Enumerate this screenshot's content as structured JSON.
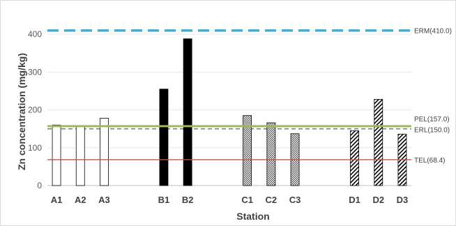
{
  "chart_data": {
    "type": "bar",
    "title": "",
    "xlabel": "Station",
    "ylabel": "Zn concentration (mg/kg)",
    "ylim": [
      0,
      450
    ],
    "yticks": [
      0,
      100,
      200,
      300,
      400
    ],
    "grid": "horizontal",
    "categories": [
      "A1",
      "A2",
      "A3",
      "B1",
      "B2",
      "C1",
      "C2",
      "C3",
      "D1",
      "D2",
      "D3"
    ],
    "groups": [
      "A",
      "A",
      "A",
      "B",
      "B",
      "C",
      "C",
      "C",
      "D",
      "D",
      "D"
    ],
    "values": [
      160,
      157,
      178,
      255,
      388,
      185,
      166,
      137,
      145,
      228,
      136
    ],
    "group_styles": {
      "A": {
        "fill": "#ffffff",
        "stroke": "#000000",
        "pattern": "none"
      },
      "B": {
        "fill": "#000000",
        "stroke": "#000000",
        "pattern": "solid"
      },
      "C": {
        "fill": "#d9d9d9",
        "stroke": "#000000",
        "pattern": "dots"
      },
      "D": {
        "fill": "#ffffff",
        "stroke": "#000000",
        "pattern": "diagonal"
      }
    },
    "reference_lines": [
      {
        "label": "ERM(410.0)",
        "value": 410.0,
        "color": "#4bacc6",
        "style": "dashed-thick"
      },
      {
        "label": "PEL(157.0)",
        "value": 157.0,
        "color": "#9bbb59",
        "style": "solid-thick"
      },
      {
        "label": "ERL(150.0)",
        "value": 150.0,
        "color": "#7f7f7f",
        "style": "dashed"
      },
      {
        "label": "TEL(68.4)",
        "value": 68.4,
        "color": "#c0504d",
        "style": "solid"
      }
    ]
  }
}
